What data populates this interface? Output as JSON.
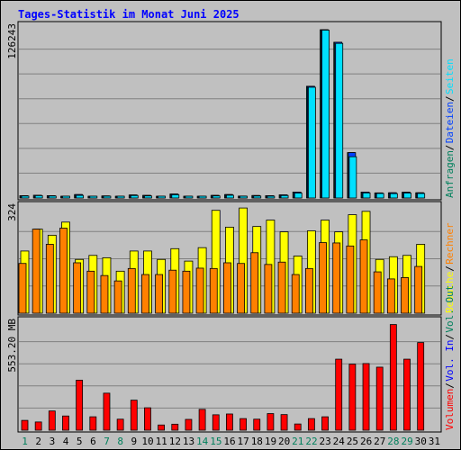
{
  "chart_data": {
    "type": "bar",
    "title": "Tages-Statistik im Monat Juni 2025",
    "colors": {
      "background": "#c0c0c0",
      "title": "#0000ff",
      "hits": "#00805c",
      "files": "#0040ff",
      "pages": "#00e0ff",
      "visits": "#ffff00",
      "sites": "#ff8000",
      "kbin": "#0000ff",
      "kbout": "#ff0000",
      "volume": "#ff0000",
      "weekend_day": "#00805c",
      "weekday": "#0000ff"
    },
    "days": [
      "1",
      "2",
      "3",
      "4",
      "5",
      "6",
      "7",
      "8",
      "9",
      "10",
      "11",
      "12",
      "13",
      "14",
      "15",
      "16",
      "17",
      "18",
      "19",
      "20",
      "21",
      "22",
      "23",
      "24",
      "25",
      "26",
      "27",
      "28",
      "29",
      "30",
      "31"
    ],
    "weekend_days": [
      "1",
      "7",
      "8",
      "14",
      "15",
      "21",
      "22",
      "28",
      "29"
    ],
    "panels": [
      {
        "id": "requests",
        "ymax": 126243,
        "ymax_label": "126243",
        "legend": [
          {
            "label": "Anfragen",
            "color": "#00805c"
          },
          {
            "label": "Dateien",
            "color": "#0040ff"
          },
          {
            "label": "Seiten",
            "color": "#00e0ff"
          }
        ],
        "series": [
          {
            "name": "Anfragen",
            "values": [
              1700,
              2000,
              1700,
              1300,
              2500,
              1300,
              1500,
              1300,
              2200,
              1900,
              1100,
              2900,
              1300,
              1300,
              1900,
              2500,
              1400,
              1800,
              1700,
              2300,
              4300,
              81200,
              122300,
              113200,
              33000,
              4300,
              3700,
              3800,
              4200,
              3800,
              0
            ]
          },
          {
            "name": "Dateien",
            "values": [
              1700,
              2000,
              1700,
              1300,
              2500,
              1300,
              1500,
              1300,
              2200,
              1900,
              1100,
              2900,
              1300,
              1300,
              1900,
              2500,
              1400,
              1800,
              1700,
              2300,
              4300,
              81200,
              122300,
              113200,
              33000,
              4300,
              3700,
              3800,
              4200,
              3800,
              0
            ]
          },
          {
            "name": "Seiten",
            "values": [
              1400,
              1700,
              1400,
              1000,
              1900,
              1000,
              1200,
              1000,
              1800,
              1500,
              900,
              2400,
              1000,
              1000,
              1500,
              2000,
              1100,
              1400,
              1300,
              1800,
              3600,
              80500,
              122000,
              112400,
              30000,
              3700,
              3300,
              3200,
              3600,
              3300,
              0
            ]
          }
        ]
      },
      {
        "id": "visits",
        "ymax": 324,
        "ymax_label": "324",
        "legend": [
          {
            "label": "Besuche",
            "color": "#ffff00"
          },
          {
            "label": "Rechner",
            "color": "#ff8000"
          }
        ],
        "series": [
          {
            "name": "Besuche",
            "values": [
              185,
              250,
              232,
              271,
              160,
              172,
              165,
              125,
              185,
              185,
              160,
              192,
              155,
              195,
              306,
              256,
              313,
              258,
              277,
              242,
              170,
              245,
              277,
              242,
              293,
              303,
              160,
              168,
              172,
              205,
              0
            ]
          },
          {
            "name": "Rechner",
            "values": [
              148,
              250,
              205,
              253,
              150,
              125,
              112,
              96,
              133,
              115,
              115,
              128,
              125,
              134,
              133,
              150,
              148,
              180,
              145,
              152,
              115,
              133,
              210,
              209,
              200,
              218,
              123,
              102,
              106,
              139,
              0
            ]
          }
        ]
      },
      {
        "id": "volume",
        "ymax": 553.2,
        "ymax_label": "553.20 MB",
        "legend": [
          {
            "label": "Volumen",
            "color": "#ff0000"
          },
          {
            "label": "Vol. In",
            "color": "#0000ff"
          },
          {
            "label": "Vol. Out",
            "color": "#00805c"
          }
        ],
        "series": [
          {
            "name": "Volumen",
            "values": [
              49,
              41,
              96,
              71,
              250,
              67,
              185,
              55,
              150,
              112,
              26,
              30,
              54,
              104,
              77,
              81,
              58,
              55,
              83,
              78,
              31,
              58,
              67,
              355,
              330,
              333,
              315,
              528,
              355,
              438,
              0
            ]
          }
        ]
      }
    ]
  }
}
